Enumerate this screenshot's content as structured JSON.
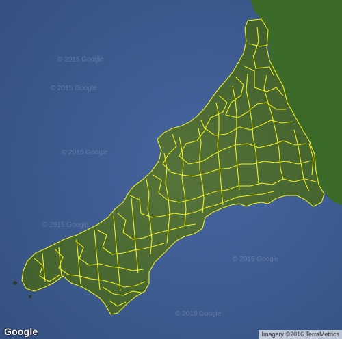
{
  "map": {
    "region": "Cornwall",
    "view": "satellite",
    "logo_text": "Google",
    "attribution": "Imagery ©2016 TerraMetrics",
    "watermarks": [
      "© 2015 Google",
      "© 2015 Google",
      "© 2015 Google",
      "© 2015 Google",
      "© 2015 Google",
      "© 2015 Google"
    ],
    "colors": {
      "sea": "#3f5f94",
      "land": "#4b6a30",
      "neighbor_land": "#3e6b2a",
      "boundary": "#f2f21e"
    }
  }
}
